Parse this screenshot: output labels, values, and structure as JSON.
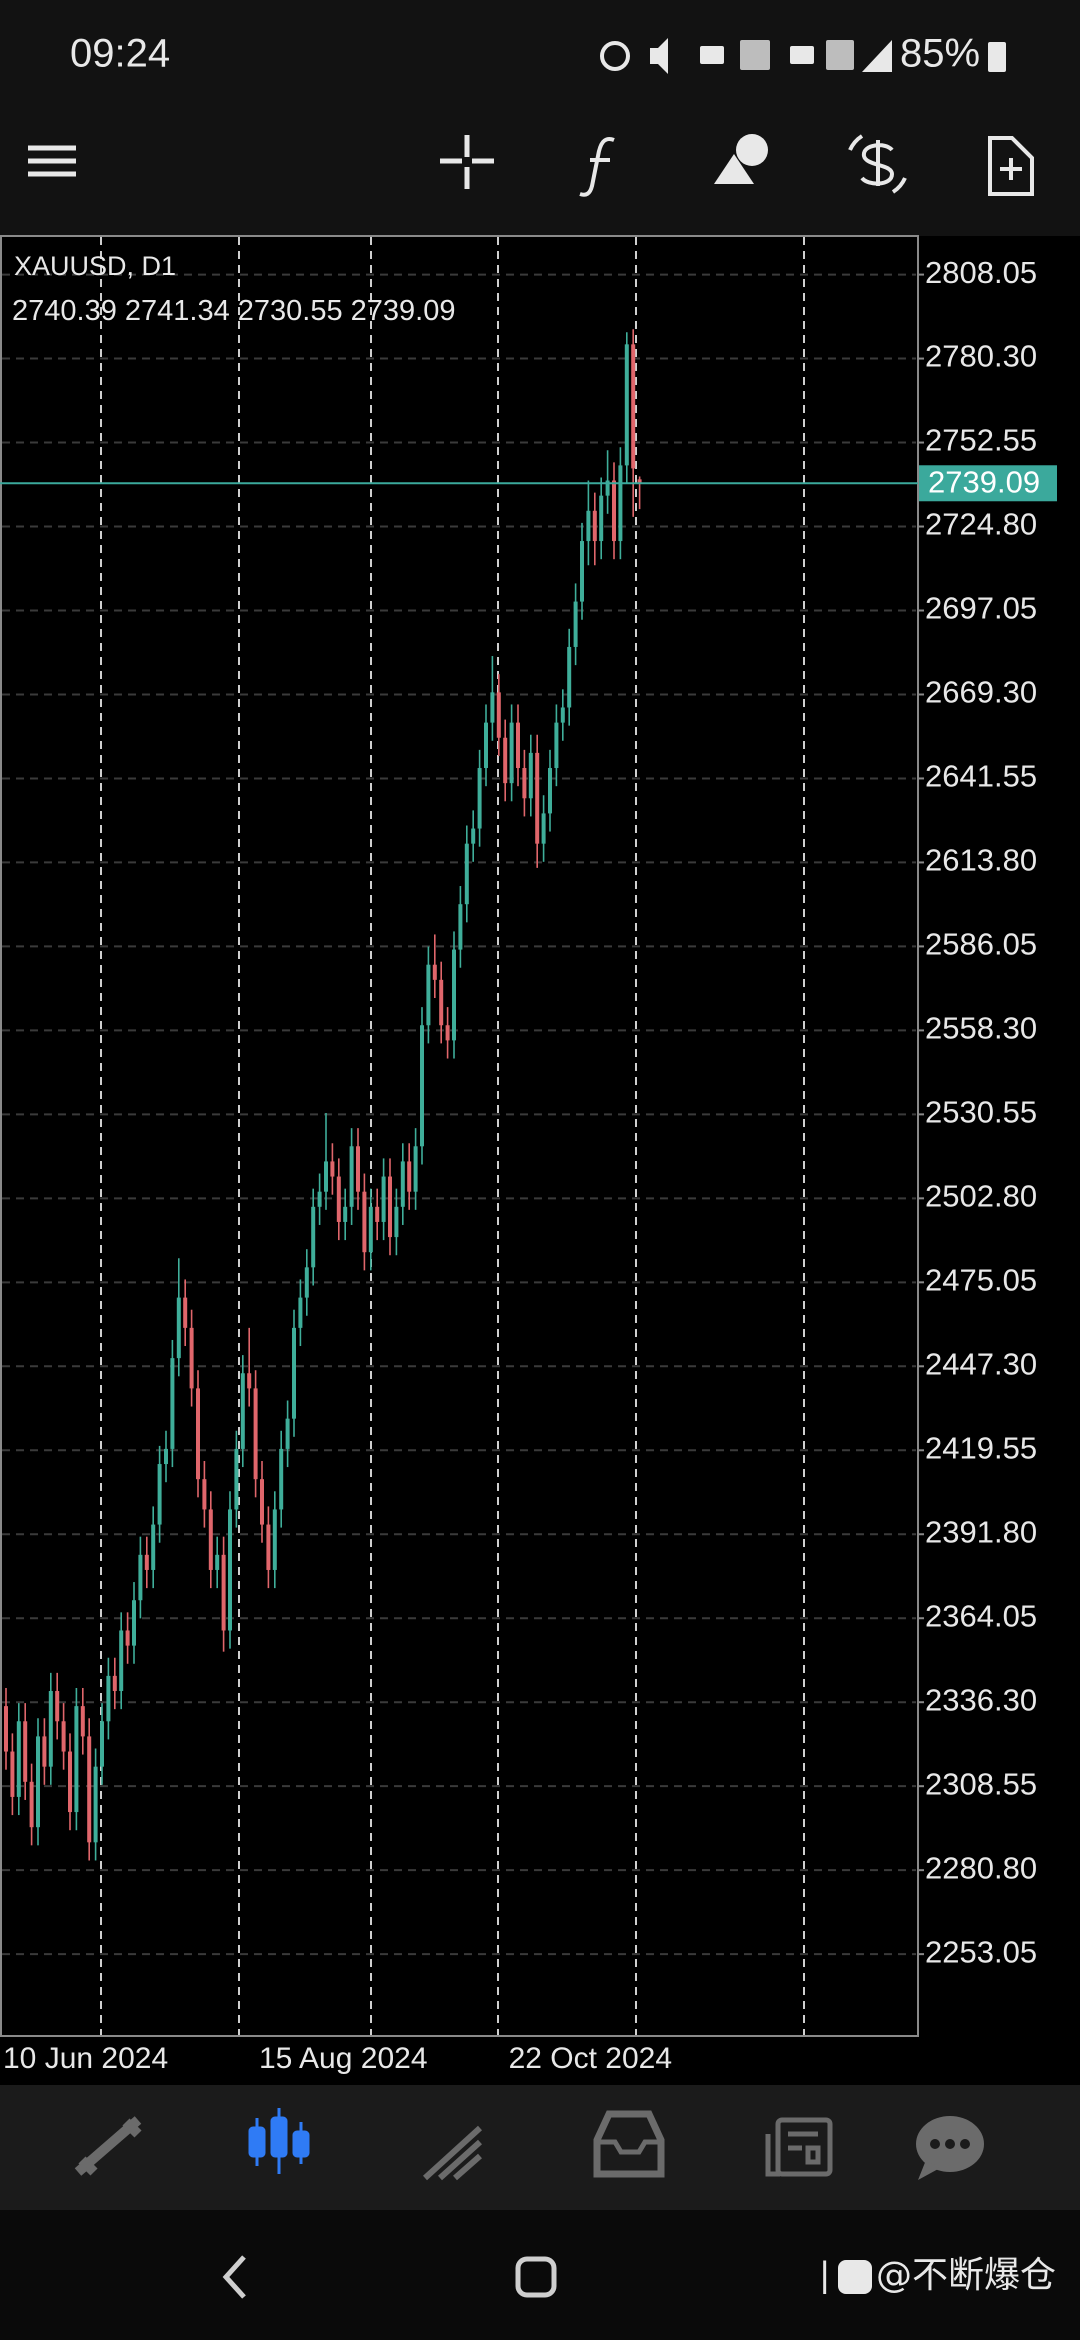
{
  "status": {
    "time": "09:24",
    "battery": "85%"
  },
  "watermark": "@不断爆仓",
  "chart_data": {
    "type": "candlestick",
    "title": "XAUUSD, D1",
    "categories": [
      "10 Jun 2024",
      null,
      null,
      null,
      null,
      null,
      null,
      null,
      null,
      null,
      null,
      null,
      null,
      null,
      null,
      null,
      null,
      null,
      null,
      null,
      null,
      null,
      null,
      null,
      null,
      null,
      null,
      null,
      null,
      null,
      null,
      null,
      null,
      null,
      null,
      null,
      null,
      null,
      null,
      null,
      "15 Aug 2024",
      null,
      null,
      null,
      null,
      null,
      null,
      null,
      null,
      null,
      null,
      null,
      null,
      null,
      null,
      null,
      null,
      null,
      null,
      null,
      null,
      null,
      null,
      null,
      null,
      null,
      null,
      null,
      null,
      null,
      null,
      null,
      null,
      null,
      null,
      null,
      null,
      null,
      null,
      "22 Oct 2024",
      null,
      null,
      null,
      null,
      null,
      null,
      null,
      null,
      null,
      null,
      null,
      null,
      null,
      null,
      null,
      null,
      null,
      null,
      null,
      null
    ],
    "open": [
      2335,
      2320,
      2305,
      2330,
      2310,
      2295,
      2325,
      2315,
      2340,
      2330,
      2320,
      2300,
      2335,
      2325,
      2290,
      2315,
      2330,
      2345,
      2340,
      2360,
      2355,
      2370,
      2385,
      2380,
      2395,
      2415,
      2420,
      2450,
      2470,
      2460,
      2440,
      2410,
      2400,
      2380,
      2385,
      2360,
      2400,
      2420,
      2445,
      2440,
      2410,
      2395,
      2380,
      2400,
      2420,
      2430,
      2460,
      2470,
      2480,
      2500,
      2505,
      2515,
      2510,
      2495,
      2500,
      2520,
      2505,
      2485,
      2500,
      2495,
      2510,
      2490,
      2500,
      2515,
      2505,
      2520,
      2560,
      2580,
      2575,
      2560,
      2555,
      2585,
      2600,
      2620,
      2625,
      2645,
      2660,
      2670,
      2655,
      2640,
      2660,
      2645,
      2635,
      2650,
      2620,
      2630,
      2645,
      2660,
      2665,
      2685,
      2700,
      2720,
      2730,
      2720,
      2735,
      2740,
      2720,
      2745,
      2785,
      2740.39
    ],
    "high": [
      2341,
      2326,
      2336,
      2336,
      2316,
      2331,
      2331,
      2346,
      2346,
      2336,
      2326,
      2341,
      2341,
      2331,
      2321,
      2336,
      2351,
      2351,
      2366,
      2366,
      2376,
      2391,
      2391,
      2401,
      2421,
      2426,
      2456,
      2483,
      2476,
      2466,
      2446,
      2416,
      2406,
      2391,
      2391,
      2406,
      2426,
      2451,
      2460,
      2446,
      2416,
      2401,
      2406,
      2426,
      2436,
      2466,
      2476,
      2486,
      2506,
      2511,
      2531,
      2521,
      2516,
      2506,
      2526,
      2526,
      2511,
      2506,
      2506,
      2516,
      2516,
      2506,
      2521,
      2521,
      2526,
      2566,
      2586,
      2590,
      2581,
      2566,
      2591,
      2606,
      2626,
      2631,
      2651,
      2666,
      2682,
      2676,
      2661,
      2666,
      2666,
      2651,
      2656,
      2656,
      2636,
      2651,
      2666,
      2671,
      2691,
      2706,
      2726,
      2740,
      2736,
      2741,
      2750,
      2746,
      2751,
      2789,
      2790,
      2741.34
    ],
    "low": [
      2314,
      2299,
      2299,
      2304,
      2289,
      2289,
      2309,
      2309,
      2324,
      2314,
      2294,
      2294,
      2319,
      2284,
      2284,
      2309,
      2324,
      2334,
      2334,
      2349,
      2349,
      2364,
      2374,
      2374,
      2389,
      2409,
      2414,
      2444,
      2454,
      2434,
      2404,
      2394,
      2374,
      2374,
      2353,
      2354,
      2394,
      2414,
      2434,
      2404,
      2389,
      2374,
      2374,
      2394,
      2414,
      2424,
      2454,
      2464,
      2474,
      2494,
      2499,
      2504,
      2489,
      2489,
      2494,
      2499,
      2479,
      2479,
      2489,
      2489,
      2484,
      2484,
      2494,
      2499,
      2499,
      2514,
      2554,
      2569,
      2554,
      2549,
      2549,
      2579,
      2594,
      2614,
      2619,
      2639,
      2654,
      2649,
      2634,
      2634,
      2639,
      2629,
      2629,
      2612,
      2614,
      2624,
      2639,
      2654,
      2659,
      2679,
      2694,
      2712,
      2712,
      2714,
      2729,
      2714,
      2714,
      2739,
      2728,
      2730.55
    ],
    "close": [
      2320,
      2305,
      2330,
      2310,
      2295,
      2325,
      2315,
      2340,
      2330,
      2320,
      2300,
      2335,
      2325,
      2290,
      2315,
      2330,
      2345,
      2340,
      2360,
      2355,
      2370,
      2385,
      2380,
      2395,
      2415,
      2420,
      2450,
      2470,
      2460,
      2440,
      2410,
      2400,
      2380,
      2385,
      2360,
      2400,
      2420,
      2445,
      2440,
      2410,
      2395,
      2380,
      2400,
      2420,
      2430,
      2460,
      2470,
      2480,
      2500,
      2505,
      2515,
      2510,
      2495,
      2500,
      2520,
      2505,
      2485,
      2500,
      2495,
      2510,
      2490,
      2500,
      2515,
      2505,
      2520,
      2560,
      2580,
      2575,
      2560,
      2555,
      2585,
      2600,
      2620,
      2625,
      2645,
      2660,
      2670,
      2655,
      2640,
      2660,
      2645,
      2635,
      2650,
      2620,
      2630,
      2645,
      2660,
      2665,
      2685,
      2700,
      2720,
      2730,
      2720,
      2735,
      2740,
      2720,
      2745,
      2785,
      2744,
      2739.09
    ],
    "ylim": [
      2226,
      2820.8
    ],
    "yticks": [
      2808.05,
      {
        "value": 2780.3,
        "label": "2780.30"
      },
      2752.55,
      {
        "value": 2724.8,
        "label": "2724.80"
      },
      2697.05,
      {
        "value": 2669.3,
        "label": "2669.30"
      },
      2641.55,
      {
        "value": 2613.8,
        "label": "2613.80"
      },
      2586.05,
      {
        "value": 2558.3,
        "label": "2558.30"
      },
      2530.55,
      {
        "value": 2502.8,
        "label": "2502.80"
      },
      2475.05,
      {
        "value": 2447.3,
        "label": "2447.30"
      },
      2419.55,
      {
        "value": 2391.8,
        "label": "2391.80"
      },
      2364.05,
      {
        "value": 2336.3,
        "label": "2336.30"
      },
      2308.55,
      {
        "value": 2280.8,
        "label": "2280.80"
      },
      2253.05
    ],
    "grid": true,
    "up_color": "#3fae9a",
    "down_color": "#e0666b",
    "price_line_color": "#3ba99c"
  }
}
